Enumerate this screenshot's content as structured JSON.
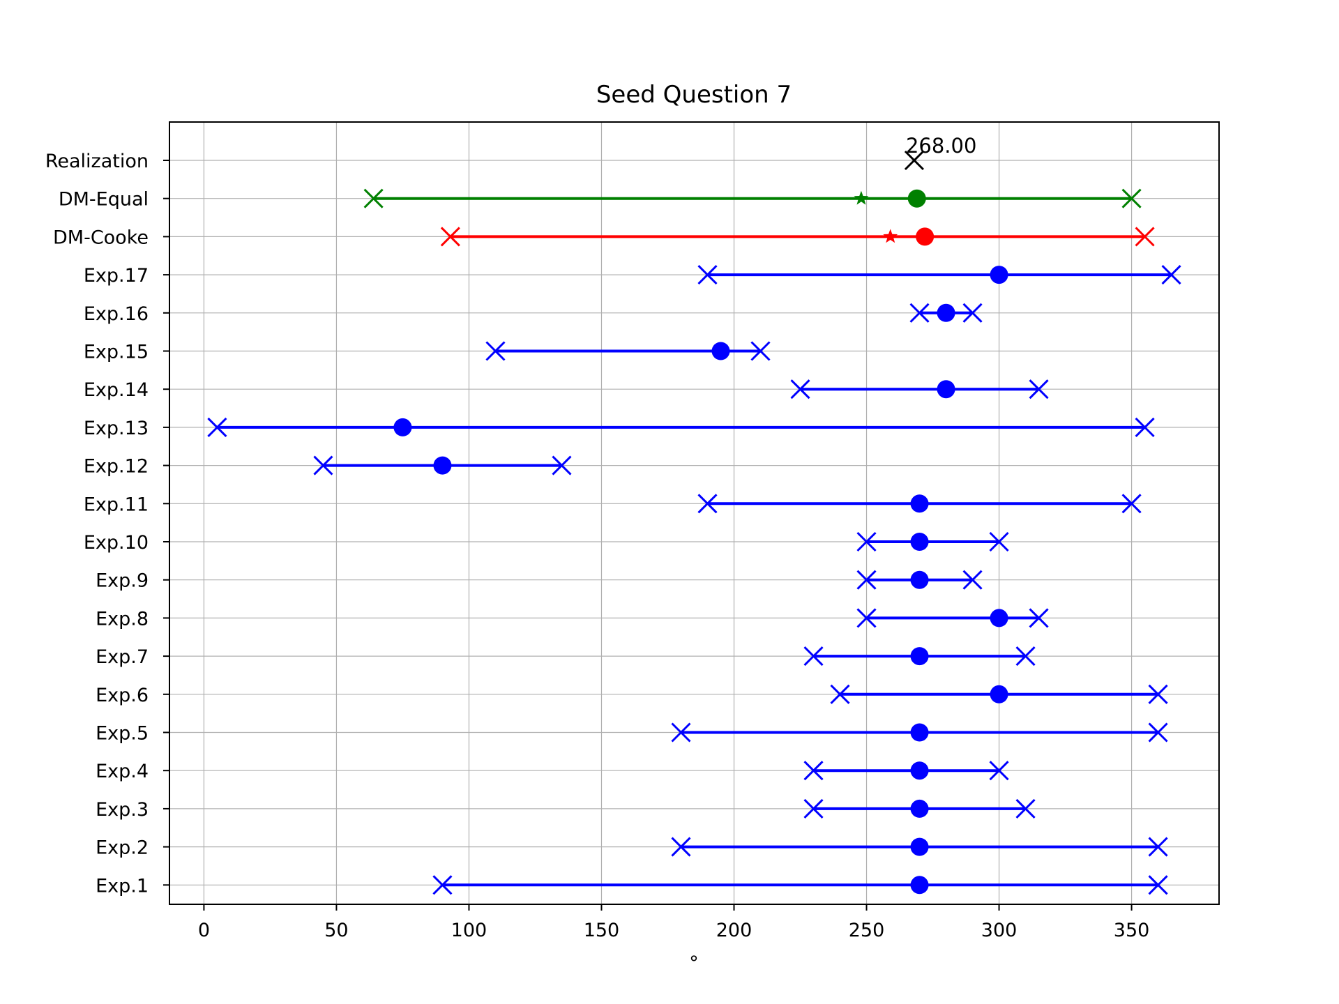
{
  "chart_data": {
    "type": "interval",
    "title": "Seed Question 7",
    "xlabel": "°",
    "ylabel": "",
    "xlim": [
      -13,
      383
    ],
    "xticks": [
      0,
      50,
      100,
      150,
      200,
      250,
      300,
      350
    ],
    "grid": true,
    "colors": {
      "expert": "#0000ff",
      "dm_cooke": "#ff0000",
      "dm_equal": "#008000",
      "realization": "#000000"
    },
    "rows": [
      {
        "label": "Exp.1",
        "low": 90,
        "median": 270,
        "high": 360,
        "color": "#0000ff"
      },
      {
        "label": "Exp.2",
        "low": 180,
        "median": 270,
        "high": 360,
        "color": "#0000ff"
      },
      {
        "label": "Exp.3",
        "low": 230,
        "median": 270,
        "high": 310,
        "color": "#0000ff"
      },
      {
        "label": "Exp.4",
        "low": 230,
        "median": 270,
        "high": 300,
        "color": "#0000ff"
      },
      {
        "label": "Exp.5",
        "low": 180,
        "median": 270,
        "high": 360,
        "color": "#0000ff"
      },
      {
        "label": "Exp.6",
        "low": 240,
        "median": 300,
        "high": 360,
        "color": "#0000ff"
      },
      {
        "label": "Exp.7",
        "low": 230,
        "median": 270,
        "high": 310,
        "color": "#0000ff"
      },
      {
        "label": "Exp.8",
        "low": 250,
        "median": 300,
        "high": 315,
        "color": "#0000ff"
      },
      {
        "label": "Exp.9",
        "low": 250,
        "median": 270,
        "high": 290,
        "color": "#0000ff"
      },
      {
        "label": "Exp.10",
        "low": 250,
        "median": 270,
        "high": 300,
        "color": "#0000ff"
      },
      {
        "label": "Exp.11",
        "low": 190,
        "median": 270,
        "high": 350,
        "color": "#0000ff"
      },
      {
        "label": "Exp.12",
        "low": 45,
        "median": 90,
        "high": 135,
        "color": "#0000ff"
      },
      {
        "label": "Exp.13",
        "low": 5,
        "median": 75,
        "high": 355,
        "color": "#0000ff"
      },
      {
        "label": "Exp.14",
        "low": 225,
        "median": 280,
        "high": 315,
        "color": "#0000ff"
      },
      {
        "label": "Exp.15",
        "low": 110,
        "median": 195,
        "high": 210,
        "color": "#0000ff"
      },
      {
        "label": "Exp.16",
        "low": 270,
        "median": 280,
        "high": 290,
        "color": "#0000ff"
      },
      {
        "label": "Exp.17",
        "low": 190,
        "median": 300,
        "high": 365,
        "color": "#0000ff"
      },
      {
        "label": "DM-Cooke",
        "low": 93,
        "median": 272,
        "high": 355,
        "mean": 259,
        "color": "#ff0000"
      },
      {
        "label": "DM-Equal",
        "low": 64,
        "median": 269,
        "high": 350,
        "mean": 248,
        "color": "#008000"
      },
      {
        "label": "Realization",
        "value": 268,
        "annotation": "268.00",
        "color": "#000000"
      }
    ]
  }
}
